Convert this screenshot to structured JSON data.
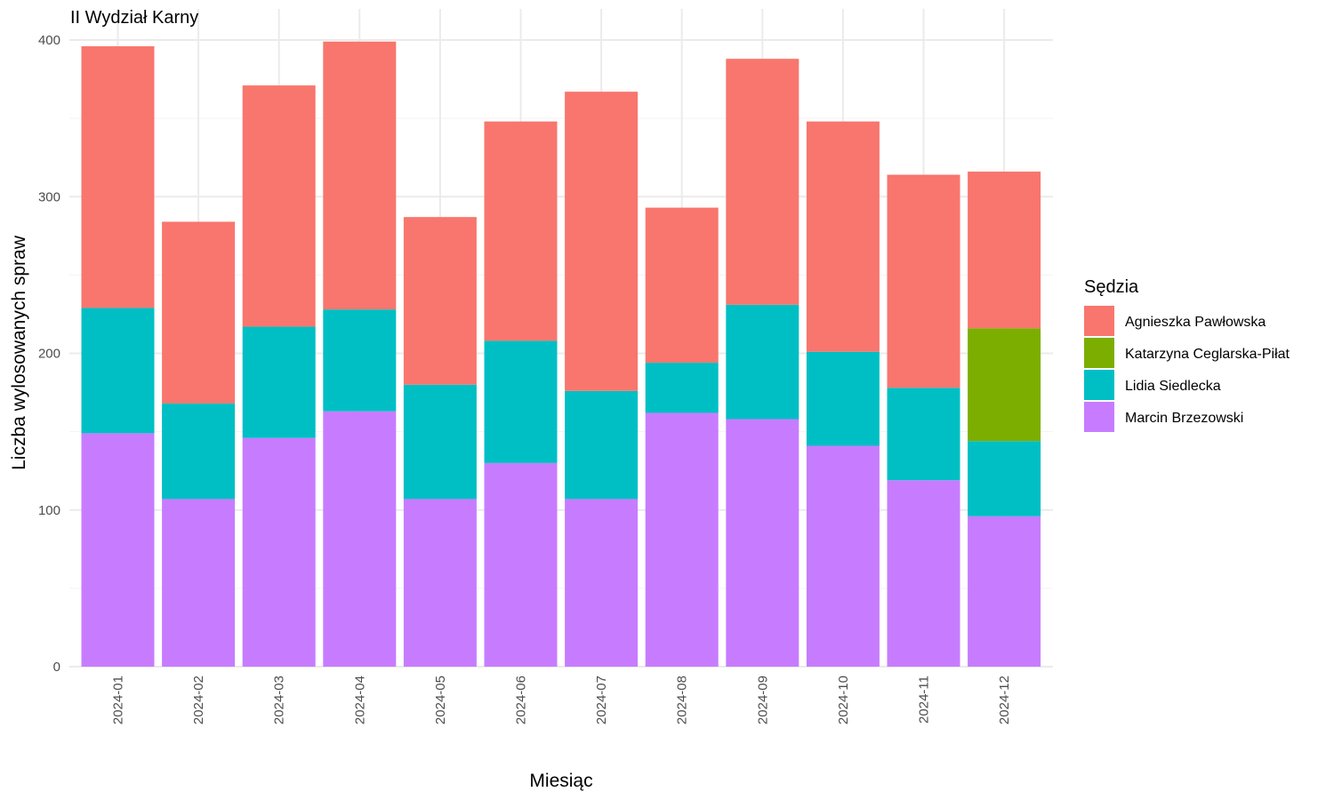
{
  "chart_data": {
    "type": "bar",
    "stacked": true,
    "title": "II Wydział Karny",
    "xlabel": "Miesiąc",
    "ylabel": "Liczba wylosowanych spraw",
    "ylim": [
      0,
      400
    ],
    "yticks": [
      0,
      100,
      200,
      300,
      400
    ],
    "grid": true,
    "legend": {
      "title": "Sędzia",
      "position": "right"
    },
    "categories": [
      "2024-01",
      "2024-02",
      "2024-03",
      "2024-04",
      "2024-05",
      "2024-06",
      "2024-07",
      "2024-08",
      "2024-09",
      "2024-10",
      "2024-11",
      "2024-12"
    ],
    "series": [
      {
        "name": "Marcin Brzezowski",
        "color": "#C77CFF",
        "values": [
          149,
          107,
          146,
          163,
          107,
          130,
          107,
          162,
          158,
          141,
          119,
          96
        ]
      },
      {
        "name": "Lidia Siedlecka",
        "color": "#00BFC4",
        "values": [
          80,
          61,
          71,
          65,
          73,
          78,
          69,
          32,
          73,
          60,
          59,
          48
        ]
      },
      {
        "name": "Katarzyna Ceglarska-Piłat",
        "color": "#7CAE00",
        "values": [
          0,
          0,
          0,
          0,
          0,
          0,
          0,
          0,
          0,
          0,
          0,
          72
        ]
      },
      {
        "name": "Agnieszka Pawłowska",
        "color": "#F8766D",
        "values": [
          167,
          116,
          154,
          171,
          107,
          140,
          191,
          99,
          157,
          147,
          136,
          100
        ]
      }
    ],
    "legend_order": [
      "Agnieszka Pawłowska",
      "Katarzyna Ceglarska-Piłat",
      "Lidia Siedlecka",
      "Marcin Brzezowski"
    ]
  }
}
